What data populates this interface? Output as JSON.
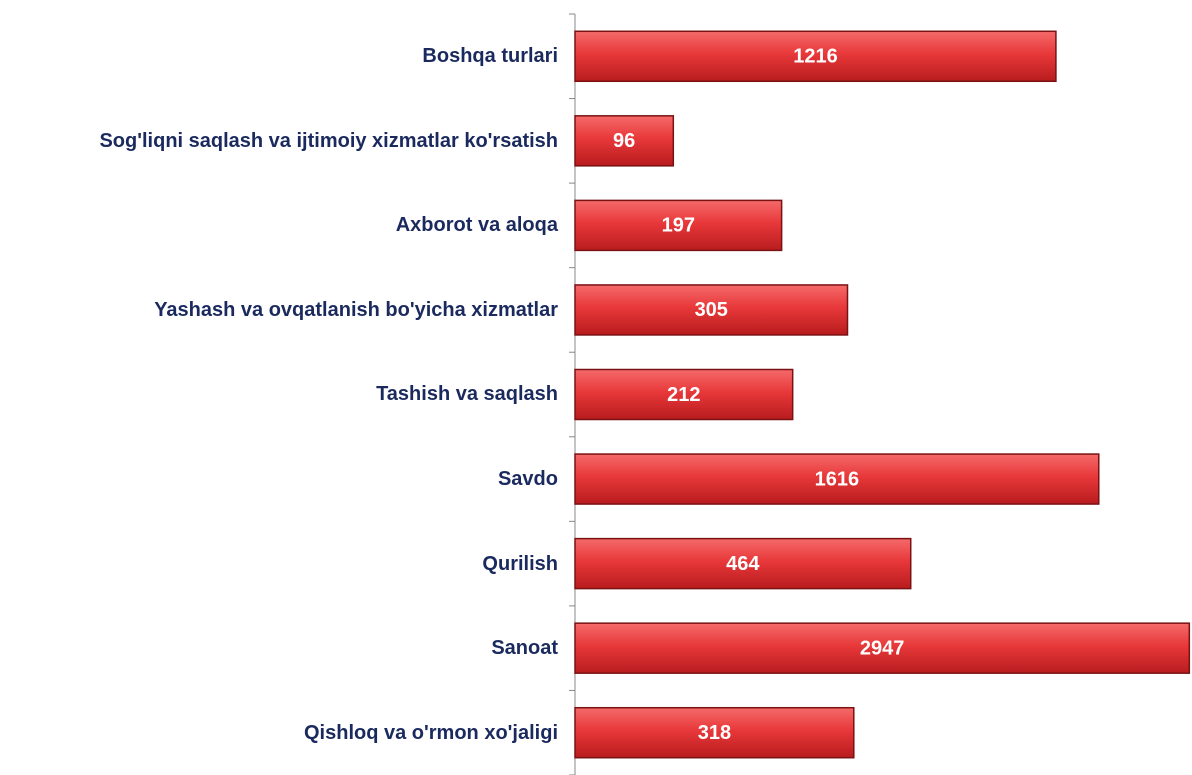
{
  "chart_data": {
    "type": "bar",
    "orientation": "horizontal",
    "categories": [
      "Boshqa turlari",
      "Sog'liqni saqlash va ijtimoiy xizmatlar ko'rsatish",
      "Axborot va aloqa",
      "Yashash va ovqatlanish bo'yicha xizmatlar",
      "Tashish va saqlash",
      "Savdo",
      "Qurilish",
      "Sanoat",
      "Qishloq va o'rmon xo'jaligi"
    ],
    "values": [
      1216,
      96,
      197,
      305,
      212,
      1616,
      464,
      2947,
      318
    ],
    "color": "#e8383a",
    "xlim": [
      50,
      3000
    ],
    "xscale": "log"
  }
}
